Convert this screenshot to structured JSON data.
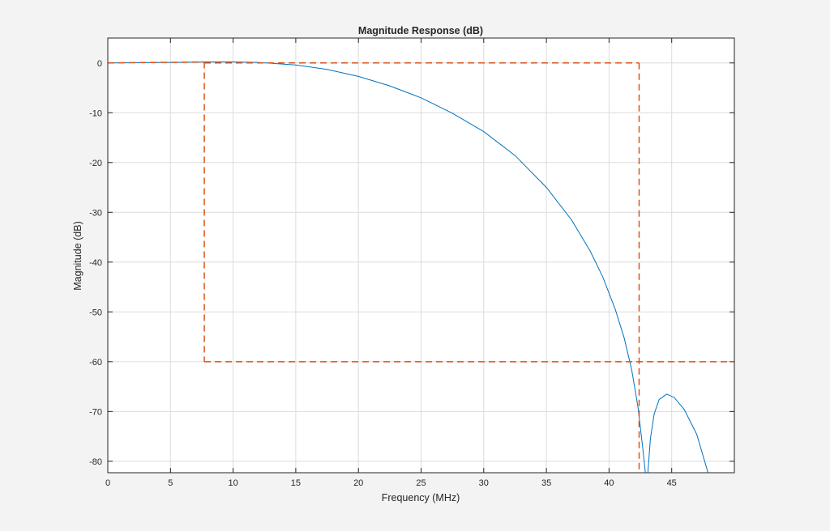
{
  "chart_data": {
    "type": "line",
    "title": "Magnitude Response (dB)",
    "xlabel": "Frequency (MHz)",
    "ylabel": "Magnitude (dB)",
    "xlim": [
      0,
      50
    ],
    "ylim": [
      -82.3,
      5
    ],
    "grid": true,
    "xticks": [
      0,
      5,
      10,
      15,
      20,
      25,
      30,
      35,
      40,
      45
    ],
    "yticks": [
      0,
      -10,
      -20,
      -30,
      -40,
      -50,
      -60,
      -70,
      -80
    ],
    "series": [
      {
        "role": "filter response",
        "color": "#0072bd",
        "style": "solid",
        "x": [
          0,
          5,
          8,
          10,
          12,
          15,
          17.5,
          20,
          22.5,
          25,
          27.5,
          30,
          32.5,
          35,
          37,
          38.5,
          39.5,
          40.5,
          41.2,
          41.8,
          42.3,
          42.7,
          42.9,
          43.0,
          43.1,
          43.3,
          43.6,
          44.0,
          44.6,
          45.2,
          46.0,
          47.0,
          47.9
        ],
        "y": [
          0,
          0.1,
          0.2,
          0.2,
          0.1,
          -0.4,
          -1.3,
          -2.7,
          -4.6,
          -7.0,
          -10.1,
          -13.8,
          -18.6,
          -25.0,
          -31.5,
          -37.8,
          -43.0,
          -49.5,
          -55.2,
          -61.5,
          -69.0,
          -77.5,
          -82.3,
          -85,
          -82.3,
          -75.5,
          -70.5,
          -67.6,
          -66.5,
          -67.2,
          -69.6,
          -74.6,
          -82.3
        ]
      },
      {
        "role": "specification mask",
        "color": "#d95319",
        "style": "dashed",
        "segments": [
          [
            [
              0,
              0
            ],
            [
              7.7,
              0.2
            ]
          ],
          [
            [
              7.7,
              0.2
            ],
            [
              7.7,
              -60
            ]
          ],
          [
            [
              7.7,
              -60
            ],
            [
              50,
              -60
            ]
          ],
          [
            [
              7.7,
              0
            ],
            [
              42.4,
              0
            ]
          ],
          [
            [
              42.4,
              0
            ],
            [
              42.4,
              -82.3
            ]
          ]
        ]
      }
    ]
  }
}
